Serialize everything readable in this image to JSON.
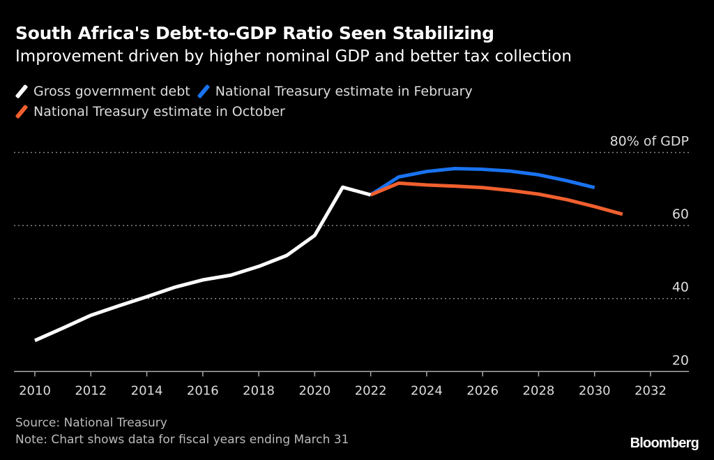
{
  "chart_data": {
    "type": "line",
    "title": "South Africa's Debt-to-GDP Ratio Seen Stabilizing",
    "subtitle": "Improvement driven by higher nominal GDP and better tax collection",
    "ylabel": "80% of GDP",
    "ylim": [
      20,
      80
    ],
    "xlim": [
      2010,
      2032
    ],
    "y_ticks": [
      "80% of GDP",
      "60",
      "40",
      "20"
    ],
    "y_tick_values": [
      80,
      60,
      40,
      20
    ],
    "x_ticks": [
      "2010",
      "2012",
      "2014",
      "2016",
      "2018",
      "2020",
      "2022",
      "2024",
      "2026",
      "2028",
      "2030",
      "2032"
    ],
    "grid": "horizontal dotted",
    "legend_position": "top-left",
    "series": [
      {
        "name": "Gross government debt",
        "color": "#ffffff",
        "x": [
          2010,
          2011,
          2012,
          2013,
          2014,
          2015,
          2016,
          2017,
          2018,
          2019,
          2020,
          2021,
          2022
        ],
        "values": [
          28.5,
          31.9,
          35.4,
          38.0,
          40.5,
          43.1,
          45.1,
          46.4,
          48.8,
          51.8,
          57.3,
          70.5,
          68.4
        ]
      },
      {
        "name": "National Treasury estimate in February",
        "color": "#1a73f0",
        "x": [
          2022,
          2023,
          2024,
          2025,
          2026,
          2027,
          2028,
          2029,
          2030
        ],
        "values": [
          68.4,
          73.3,
          74.8,
          75.6,
          75.4,
          74.9,
          73.9,
          72.3,
          70.4
        ]
      },
      {
        "name": "National Treasury estimate in October",
        "color": "#f0602e",
        "x": [
          2022,
          2023,
          2024,
          2025,
          2026,
          2027,
          2028,
          2029,
          2030,
          2031
        ],
        "values": [
          68.4,
          71.6,
          71.1,
          70.8,
          70.4,
          69.6,
          68.6,
          67.1,
          65.2,
          63.1
        ]
      }
    ]
  },
  "footer": {
    "source": "Source: National Treasury",
    "note": "Note: Chart shows data for fiscal years ending March 31",
    "logo": "Bloomberg"
  }
}
